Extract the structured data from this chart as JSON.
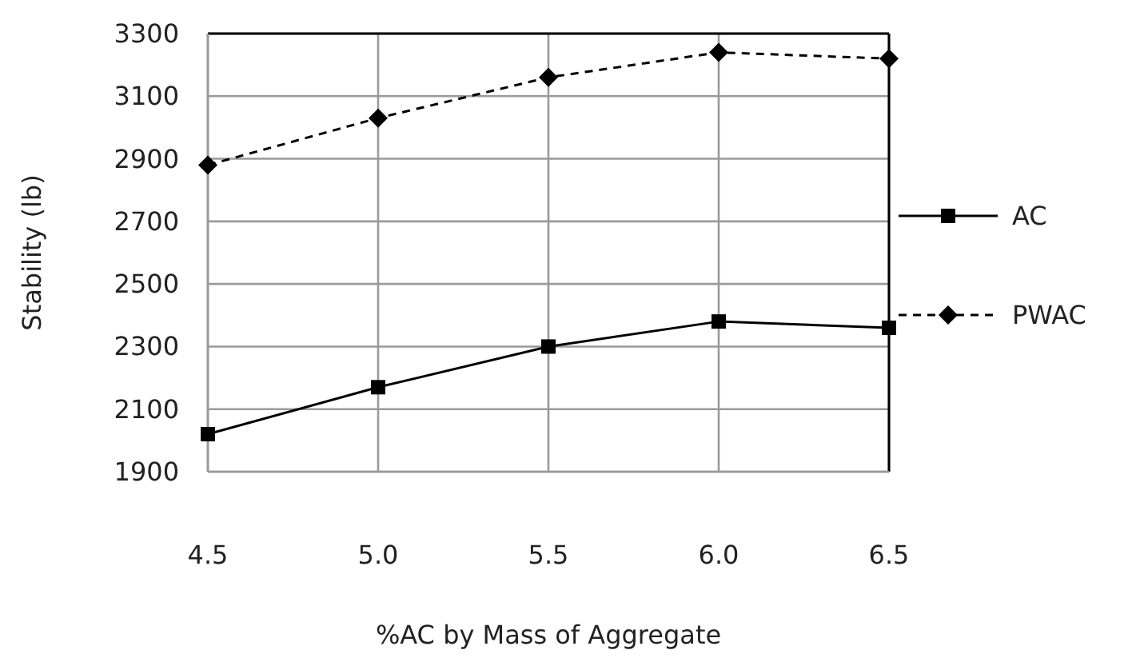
{
  "chart_data": {
    "type": "line",
    "xlabel": "%AC by Mass of Aggregate",
    "ylabel": "Stability (lb)",
    "x": [
      4.5,
      5.0,
      5.5,
      6.0,
      6.5
    ],
    "xlim": [
      4.5,
      6.5
    ],
    "xticks": [
      {
        "value": 4.5,
        "label": "4.5"
      },
      {
        "value": 5,
        "label": "5.0"
      },
      {
        "value": 5.5,
        "label": "5.5"
      },
      {
        "value": 6,
        "label": "6.0"
      },
      {
        "value": 6.5,
        "label": "6.5"
      }
    ],
    "ylim": [
      1900,
      3300
    ],
    "yticks": [
      1900,
      2100,
      2300,
      2500,
      2700,
      2900,
      3100,
      3300
    ],
    "grid": true,
    "legend": "right",
    "series": [
      {
        "name": "AC",
        "color": "#000000",
        "values": [
          2020,
          2170,
          2300,
          2380,
          2360
        ],
        "marker": "square",
        "line_style": "solid"
      },
      {
        "name": "PWAC",
        "color": "#000000",
        "values": [
          2880,
          3030,
          3160,
          3240,
          3220
        ],
        "marker": "diamond",
        "line_style": "dashed"
      }
    ]
  }
}
